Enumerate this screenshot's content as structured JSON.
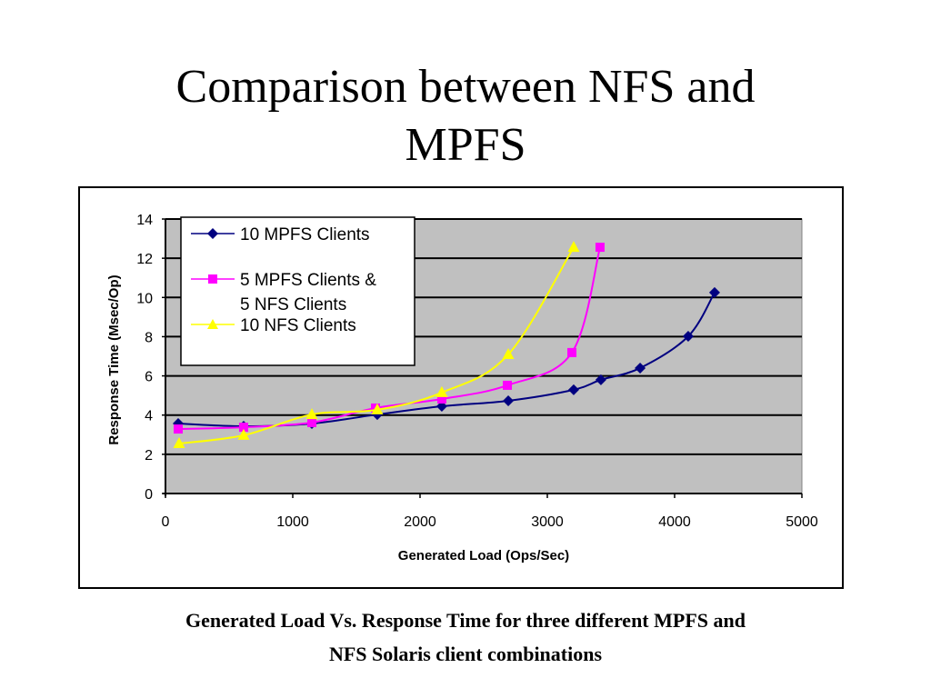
{
  "slide": {
    "title_line1": "Comparison between NFS and",
    "title_line2": "MPFS",
    "caption_line1": "Generated Load Vs. Response Time for three different MPFS and",
    "caption_line2": "NFS Solaris client combinations"
  },
  "chart_data": {
    "type": "line",
    "title": "",
    "xlabel": "Generated Load (Ops/Sec)",
    "ylabel": "Response Time (Msec/Op)",
    "xlim": [
      0,
      5000
    ],
    "ylim": [
      0,
      14
    ],
    "xticks": [
      0,
      1000,
      2000,
      3000,
      4000,
      5000
    ],
    "yticks": [
      0,
      2,
      4,
      6,
      8,
      10,
      12,
      14
    ],
    "grid": "horizontal",
    "plot_background": "#C0C0C0",
    "legend_position": "top-left",
    "series": [
      {
        "name": "10 MPFS Clients",
        "color": "#000080",
        "marker": "diamond",
        "x": [
          100,
          614,
          1150,
          1664,
          2171,
          2693,
          3207,
          3421,
          3729,
          4107,
          4314
        ],
        "y": [
          3.57,
          3.43,
          3.57,
          4.03,
          4.45,
          4.73,
          5.29,
          5.8,
          6.4,
          8.02,
          10.25
        ]
      },
      {
        "name_line1": "5 MPFS Clients &",
        "name_line2": "5 NFS Clients",
        "name": "5 MPFS Clients & 5 NFS Clients",
        "color": "#FF00FF",
        "marker": "square",
        "x": [
          100,
          614,
          1150,
          1650,
          2171,
          2686,
          3193,
          3414
        ],
        "y": [
          3.29,
          3.38,
          3.62,
          4.36,
          4.82,
          5.52,
          7.19,
          12.56
        ]
      },
      {
        "name": "10 NFS Clients",
        "color": "#FFFF00",
        "marker": "triangle",
        "x": [
          107,
          614,
          1150,
          1664,
          2171,
          2693,
          3207
        ],
        "y": [
          2.55,
          2.97,
          4.03,
          4.27,
          5.15,
          7.09,
          12.56
        ]
      }
    ]
  }
}
